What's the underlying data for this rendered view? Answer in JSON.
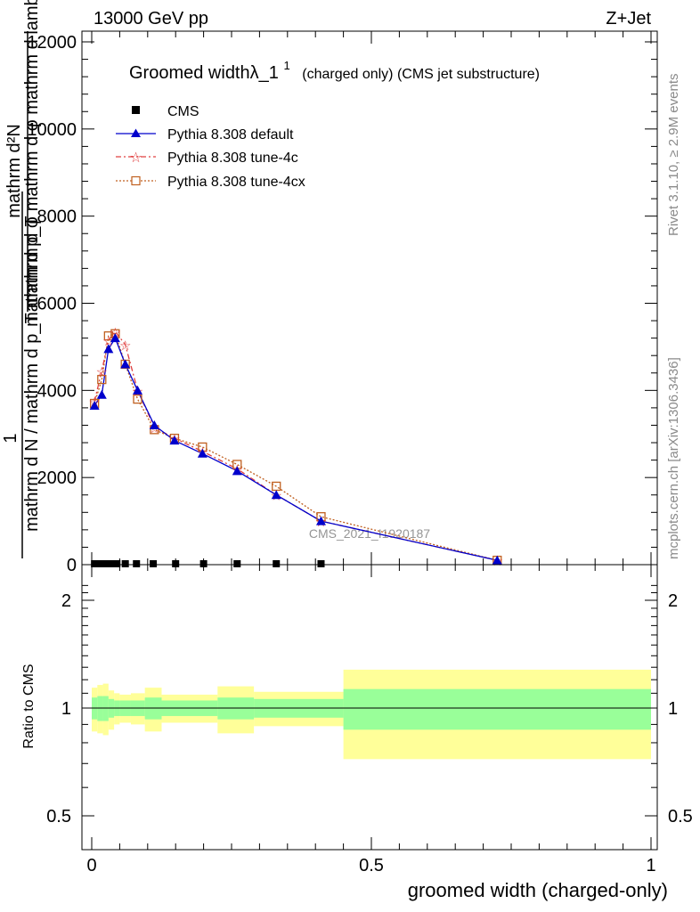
{
  "header": {
    "energy_label": "13000 GeV pp",
    "process_label": "Z+Jet",
    "side_rivet": "Rivet 3.1.10, ≥ 2.9M events",
    "side_mcplots": "mcplots.cern.ch [arXiv:1306.3436]",
    "watermark": "CMS_2021_I1920187"
  },
  "colors": {
    "default": "#0000cc",
    "tune4c": "#e04040",
    "tune4cx": "#c06020",
    "band_inner": "#99ff99",
    "band_outer": "#ffff99"
  },
  "chart_data": [
    {
      "type": "line",
      "title": "Groomed widthλ_1",
      "title_sup": "1",
      "subtitle": "(charged only) (CMS jet substructure)",
      "ylabel": "1 / mathrm d N / mathrm d p_T mathrm d φ mathrm d lambda : mathrm d^2N / mathrm d p_T mathrm d φ",
      "ylabel_parts": {
        "num_top": "mathrm d²N",
        "num_bot": "mathrm d p_T mathrm d φ  mathrm d lambda",
        "one": "1",
        "den": "mathrm d N / mathrm d p_T mathrm d φ"
      },
      "xlim": [
        0,
        1
      ],
      "ylim": [
        0,
        12000
      ],
      "yticks": [
        0,
        2000,
        4000,
        6000,
        8000,
        10000,
        12000
      ],
      "legend_position": "top-left",
      "series": [
        {
          "name": "CMS",
          "x": [
            0.005,
            0.015,
            0.025,
            0.035,
            0.045,
            0.06,
            0.08,
            0.11,
            0.15,
            0.2,
            0.26,
            0.33,
            0.41
          ],
          "y": [
            0,
            0,
            0,
            0,
            0,
            0,
            0,
            0,
            0,
            0,
            0,
            0,
            0
          ]
        },
        {
          "name": "Pythia 8.308 default",
          "x": [
            0.005,
            0.018,
            0.03,
            0.042,
            0.06,
            0.082,
            0.112,
            0.148,
            0.198,
            0.26,
            0.33,
            0.41,
            0.725
          ],
          "y": [
            3650,
            3900,
            4950,
            5200,
            4600,
            4000,
            3200,
            2850,
            2550,
            2150,
            1600,
            1000,
            100
          ]
        },
        {
          "name": "Pythia 8.308 tune-4c",
          "x": [
            0.005,
            0.018,
            0.03,
            0.042,
            0.06,
            0.082,
            0.112,
            0.148,
            0.198,
            0.26,
            0.33,
            0.41,
            0.725
          ],
          "y": [
            3750,
            4450,
            5150,
            5350,
            5050,
            4000,
            3150,
            2900,
            2600,
            2200,
            1600,
            1000,
            100
          ]
        },
        {
          "name": "Pythia 8.308 tune-4cx",
          "x": [
            0.005,
            0.018,
            0.03,
            0.042,
            0.06,
            0.082,
            0.112,
            0.148,
            0.198,
            0.26,
            0.33,
            0.41,
            0.725
          ],
          "y": [
            3700,
            4250,
            5250,
            5300,
            4600,
            3800,
            3100,
            2900,
            2700,
            2300,
            1800,
            1100,
            100
          ]
        }
      ]
    },
    {
      "type": "area",
      "xlabel": "groomed width (charged-only)",
      "ylabel": "Ratio to CMS",
      "xlim": [
        0,
        1
      ],
      "ylim": [
        0.35,
        2.25
      ],
      "yticks": [
        0.5,
        1,
        2
      ],
      "xticks": [
        0,
        0.5,
        1
      ],
      "bins": [
        {
          "lo": 0.0,
          "hi": 0.01,
          "inner": [
            0.93,
            1.07
          ],
          "outer": [
            0.86,
            1.14
          ]
        },
        {
          "lo": 0.01,
          "hi": 0.02,
          "inner": [
            0.92,
            1.08
          ],
          "outer": [
            0.85,
            1.16
          ]
        },
        {
          "lo": 0.02,
          "hi": 0.03,
          "inner": [
            0.92,
            1.08
          ],
          "outer": [
            0.84,
            1.17
          ]
        },
        {
          "lo": 0.03,
          "hi": 0.04,
          "inner": [
            0.94,
            1.06
          ],
          "outer": [
            0.87,
            1.12
          ]
        },
        {
          "lo": 0.04,
          "hi": 0.05,
          "inner": [
            0.95,
            1.05
          ],
          "outer": [
            0.9,
            1.1
          ]
        },
        {
          "lo": 0.05,
          "hi": 0.07,
          "inner": [
            0.95,
            1.05
          ],
          "outer": [
            0.91,
            1.09
          ]
        },
        {
          "lo": 0.07,
          "hi": 0.095,
          "inner": [
            0.95,
            1.05
          ],
          "outer": [
            0.9,
            1.1
          ]
        },
        {
          "lo": 0.095,
          "hi": 0.125,
          "inner": [
            0.93,
            1.07
          ],
          "outer": [
            0.86,
            1.14
          ]
        },
        {
          "lo": 0.125,
          "hi": 0.225,
          "inner": [
            0.95,
            1.05
          ],
          "outer": [
            0.91,
            1.09
          ]
        },
        {
          "lo": 0.225,
          "hi": 0.29,
          "inner": [
            0.93,
            1.07
          ],
          "outer": [
            0.85,
            1.15
          ]
        },
        {
          "lo": 0.29,
          "hi": 0.45,
          "inner": [
            0.94,
            1.06
          ],
          "outer": [
            0.89,
            1.11
          ]
        },
        {
          "lo": 0.45,
          "hi": 1.0,
          "inner": [
            0.87,
            1.13
          ],
          "outer": [
            0.72,
            1.28
          ]
        }
      ]
    }
  ]
}
